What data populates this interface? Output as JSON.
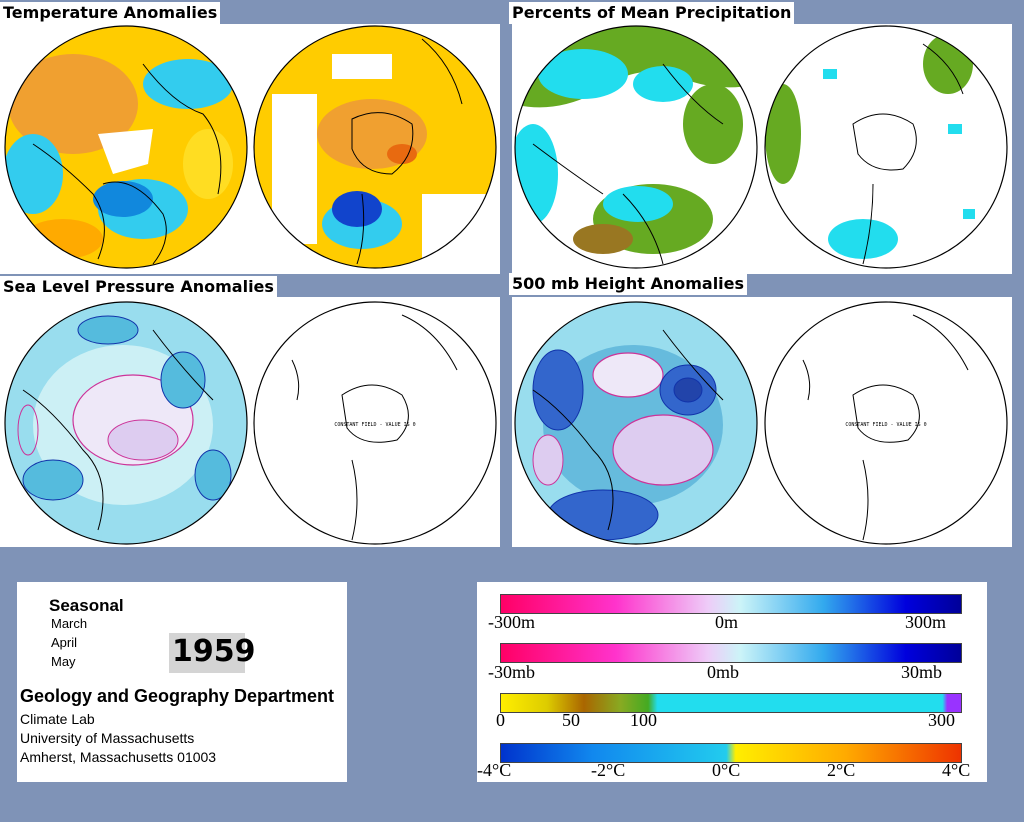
{
  "panels": {
    "temperature": {
      "title": "Temperature Anomalies"
    },
    "precipitation": {
      "title": "Percents of Mean Precipitation"
    },
    "sea_level_pressure": {
      "title": "Sea Level Pressure Anomalies"
    },
    "height_500mb": {
      "title": "500 mb Height Anomalies"
    }
  },
  "maps": {
    "constant_field_note": "CONSTANT FIELD - VALUE IS 0"
  },
  "info": {
    "season": "Seasonal",
    "months": [
      "March",
      "April",
      "May"
    ],
    "year": "1959",
    "department": "Geology and Geography Department",
    "lab": "Climate Lab",
    "university": "University of Massachusetts",
    "address": "Amherst, Massachusetts 01003"
  },
  "legend": {
    "height": {
      "min": "-300m",
      "mid": "0m",
      "max": "300m"
    },
    "pressure": {
      "min": "-30mb",
      "mid": "0mb",
      "max": "30mb"
    },
    "precip": {
      "t0": "0",
      "t50": "50",
      "t100": "100",
      "t300": "300"
    },
    "temperature": {
      "t1": "-4°C",
      "t2": "-2°C",
      "t3": "0°C",
      "t4": "2°C",
      "t5": "4°C"
    }
  },
  "colors": {
    "background": "#7f93b7",
    "warm": "#ffcc00",
    "hot": "#e86a10",
    "cool": "#33ccee",
    "cold": "#1144cc",
    "neg_height": "#ff0080",
    "pos_height": "#0000cc",
    "precip_dry": "#ffee00",
    "precip_mid": "#66aa22",
    "precip_wet": "#22ddee"
  }
}
